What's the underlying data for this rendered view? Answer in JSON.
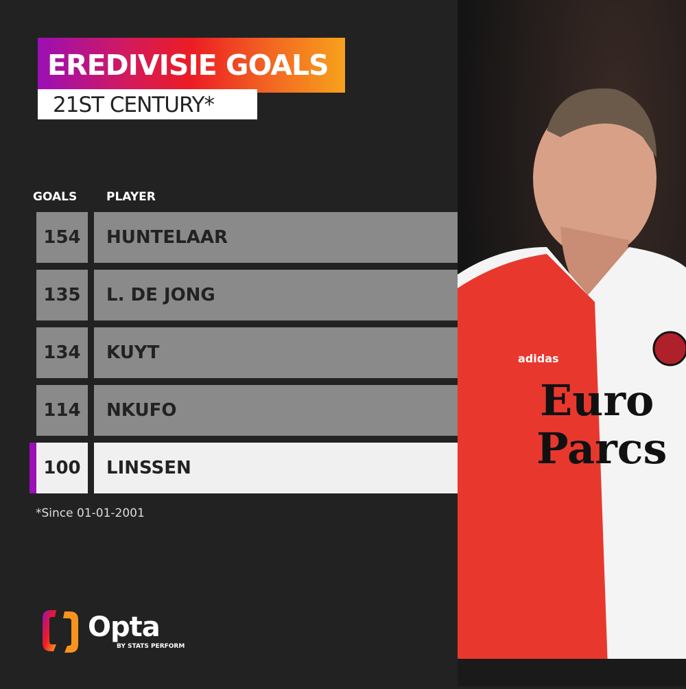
{
  "header": {
    "title": "EREDIVISIE GOALS",
    "subtitle": "21ST CENTURY*"
  },
  "table": {
    "columns": [
      "GOALS",
      "PLAYER"
    ],
    "rows": [
      {
        "goals": "154",
        "player": "HUNTELAAR",
        "highlighted": false
      },
      {
        "goals": "135",
        "player": "L. DE JONG",
        "highlighted": false
      },
      {
        "goals": "134",
        "player": "KUYT",
        "highlighted": false
      },
      {
        "goals": "114",
        "player": "NKUFO",
        "highlighted": false
      },
      {
        "goals": "100",
        "player": "LINSSEN",
        "highlighted": true
      }
    ]
  },
  "footnote": "*Since 01-01-2001",
  "logo": {
    "name": "Opta",
    "tagline": "BY STATS PERFORM"
  },
  "photo": {
    "sponsor_line1": "Euro",
    "sponsor_line2": "Parcs",
    "kit_brand": "adidas"
  },
  "colors": {
    "background": "#222222",
    "row": "#8a8a8a",
    "highlight_row": "#f0f0f0",
    "accent": "#9b0fb5",
    "gradient_end": "#f7a21b"
  }
}
